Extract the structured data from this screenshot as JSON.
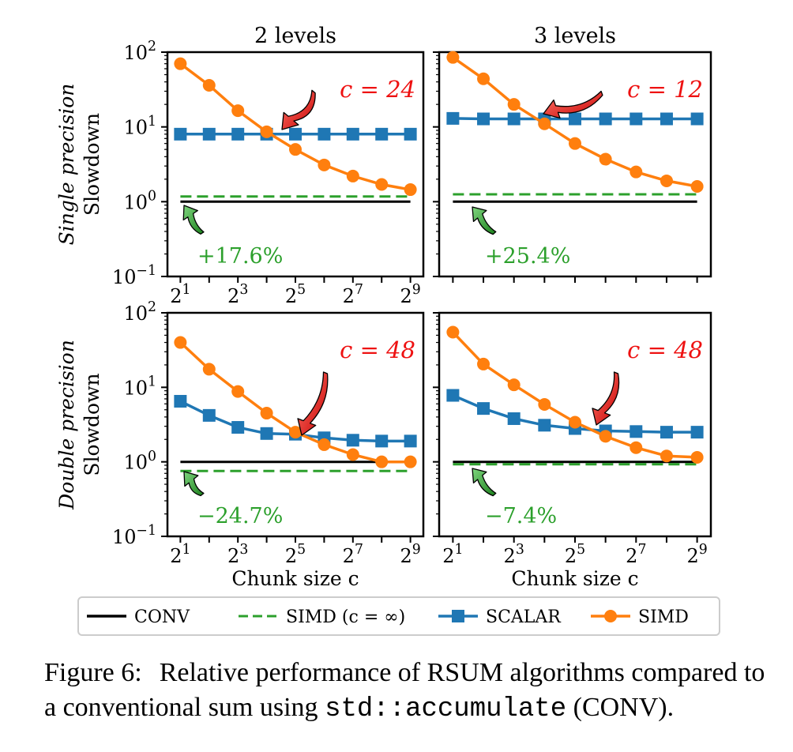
{
  "caption": {
    "label": "Figure 6:",
    "text_1": "Relative performance of RSUM algorithms compared to a conventional sum using",
    "code": "std::accumulate",
    "text_2": "(CONV)."
  },
  "colors": {
    "conv": "#000000",
    "simd_inf": "#2ca02c",
    "scalar": "#1f77b4",
    "simd": "#ff7f0e",
    "annotation_c": "#ee1111",
    "annotation_pct": "#2ca02c",
    "arrow_red": "#ee1111",
    "arrow_green": "#2ca02c"
  },
  "legend": [
    {
      "key": "conv",
      "label": "CONV",
      "style": "solid"
    },
    {
      "key": "simd_inf",
      "label": "SIMD (c = ∞)",
      "style": "dashed"
    },
    {
      "key": "scalar",
      "label": "SCALAR",
      "style": "square-marker"
    },
    {
      "key": "simd",
      "label": "SIMD",
      "style": "circle-marker"
    }
  ],
  "chart_data": [
    {
      "type": "line",
      "column_title": "2 levels",
      "row_label": "Single precision",
      "ylabel": "Slowdown",
      "xlabel": "",
      "y_scale": "log",
      "ylim": [
        0.1,
        100
      ],
      "x_scale": "log2",
      "x": [
        2,
        4,
        8,
        16,
        32,
        64,
        128,
        256,
        512
      ],
      "x_tick_labels": [
        "2^1",
        "2^3",
        "2^5",
        "2^7",
        "2^9"
      ],
      "y_tick_labels": [
        "10^-1",
        "10^0",
        "10^1",
        "10^2"
      ],
      "series": [
        {
          "key": "conv",
          "values": [
            1,
            1,
            1,
            1,
            1,
            1,
            1,
            1,
            1
          ]
        },
        {
          "key": "simd_inf",
          "values": [
            1.176,
            1.176,
            1.176,
            1.176,
            1.176,
            1.176,
            1.176,
            1.176,
            1.176
          ]
        },
        {
          "key": "scalar",
          "values": [
            8.0,
            8.0,
            8.0,
            8.0,
            8.0,
            8.0,
            8.0,
            8.0,
            8.0
          ]
        },
        {
          "key": "simd",
          "values": [
            70,
            36,
            16.5,
            8.6,
            5.0,
            3.1,
            2.2,
            1.7,
            1.45
          ]
        }
      ],
      "annotations": {
        "crossover": "c = 24",
        "difference": "+17.6%"
      }
    },
    {
      "type": "line",
      "column_title": "3 levels",
      "row_label": "",
      "ylabel": "",
      "xlabel": "",
      "y_scale": "log",
      "ylim": [
        0.1,
        100
      ],
      "x_scale": "log2",
      "x": [
        2,
        4,
        8,
        16,
        32,
        64,
        128,
        256,
        512
      ],
      "x_tick_labels": [],
      "y_tick_labels": [],
      "series": [
        {
          "key": "conv",
          "values": [
            1,
            1,
            1,
            1,
            1,
            1,
            1,
            1,
            1
          ]
        },
        {
          "key": "simd_inf",
          "values": [
            1.254,
            1.254,
            1.254,
            1.254,
            1.254,
            1.254,
            1.254,
            1.254,
            1.254
          ]
        },
        {
          "key": "scalar",
          "values": [
            13,
            12.8,
            12.8,
            12.8,
            12.8,
            12.8,
            12.8,
            12.8,
            12.8
          ]
        },
        {
          "key": "simd",
          "values": [
            85,
            44,
            20,
            11,
            6.0,
            3.7,
            2.5,
            1.9,
            1.6
          ]
        }
      ],
      "annotations": {
        "crossover": "c = 12",
        "difference": "+25.4%"
      }
    },
    {
      "type": "line",
      "column_title": "",
      "row_label": "Double precision",
      "ylabel": "Slowdown",
      "xlabel": "Chunk size c",
      "y_scale": "log",
      "ylim": [
        0.1,
        100
      ],
      "x_scale": "log2",
      "x": [
        2,
        4,
        8,
        16,
        32,
        64,
        128,
        256,
        512
      ],
      "x_tick_labels": [
        "2^1",
        "2^3",
        "2^5",
        "2^7",
        "2^9"
      ],
      "y_tick_labels": [
        "10^-1",
        "10^0",
        "10^1",
        "10^2"
      ],
      "series": [
        {
          "key": "conv",
          "values": [
            1,
            1,
            1,
            1,
            1,
            1,
            1,
            1,
            1
          ]
        },
        {
          "key": "simd_inf",
          "values": [
            0.753,
            0.753,
            0.753,
            0.753,
            0.753,
            0.753,
            0.753,
            0.753,
            0.753
          ]
        },
        {
          "key": "scalar",
          "values": [
            6.5,
            4.2,
            2.9,
            2.4,
            2.35,
            2.1,
            1.95,
            1.9,
            1.9
          ]
        },
        {
          "key": "simd",
          "values": [
            40,
            17.5,
            8.8,
            4.5,
            2.5,
            1.7,
            1.25,
            1.0,
            1.0
          ]
        }
      ],
      "annotations": {
        "crossover": "c = 48",
        "difference": "−24.7%"
      }
    },
    {
      "type": "line",
      "column_title": "",
      "row_label": "",
      "ylabel": "",
      "xlabel": "Chunk size c",
      "y_scale": "log",
      "ylim": [
        0.1,
        100
      ],
      "x_scale": "log2",
      "x": [
        2,
        4,
        8,
        16,
        32,
        64,
        128,
        256,
        512
      ],
      "x_tick_labels": [
        "2^1",
        "2^3",
        "2^5",
        "2^7",
        "2^9"
      ],
      "y_tick_labels": [],
      "series": [
        {
          "key": "conv",
          "values": [
            1,
            1,
            1,
            1,
            1,
            1,
            1,
            1,
            1
          ]
        },
        {
          "key": "simd_inf",
          "values": [
            0.926,
            0.926,
            0.926,
            0.926,
            0.926,
            0.926,
            0.926,
            0.926,
            0.926
          ]
        },
        {
          "key": "scalar",
          "values": [
            7.8,
            5.2,
            3.8,
            3.1,
            2.8,
            2.6,
            2.55,
            2.5,
            2.5
          ]
        },
        {
          "key": "simd",
          "values": [
            55,
            20.5,
            10.8,
            5.9,
            3.4,
            2.2,
            1.55,
            1.2,
            1.15
          ]
        }
      ],
      "annotations": {
        "crossover": "c = 48",
        "difference": "−7.4%"
      }
    }
  ]
}
